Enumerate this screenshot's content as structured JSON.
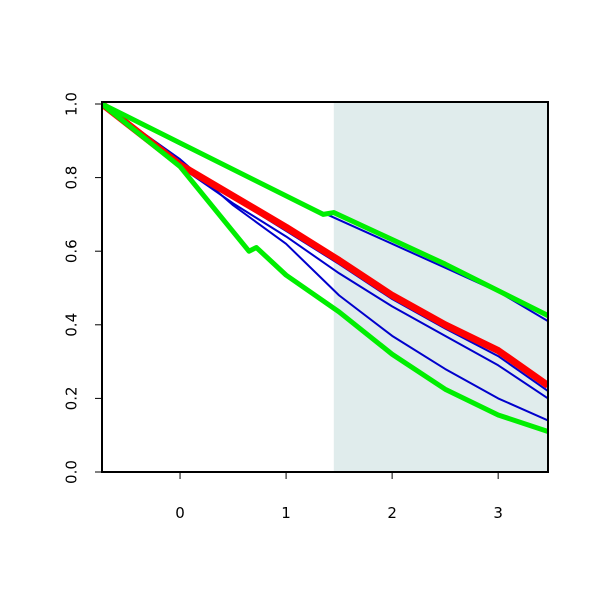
{
  "chart_data": {
    "type": "line",
    "xlim": [
      -0.736,
      3.47
    ],
    "ylim": [
      0,
      1.0
    ],
    "xticks": [
      0,
      1,
      2,
      3
    ],
    "yticks": [
      {
        "value": 0,
        "label": "0.0"
      },
      {
        "value": 0.2,
        "label": "0.2"
      },
      {
        "value": 0.4,
        "label": "0.4"
      },
      {
        "value": 0.6,
        "label": "0.6"
      },
      {
        "value": 0.8,
        "label": "0.8"
      },
      {
        "value": 1.0,
        "label": "1.0"
      }
    ],
    "shaded_region": {
      "x": [
        1.45,
        3.47
      ],
      "color": "#e0ecec"
    },
    "series": [
      {
        "color": "#0000cc",
        "width": 2,
        "x": [
          -0.736,
          0,
          0.5,
          1,
          1.5,
          2,
          2.5,
          3,
          3.47
        ],
        "values": [
          1.0,
          0.89,
          0.82,
          0.75,
          0.685,
          0.62,
          0.555,
          0.49,
          0.41
        ]
      },
      {
        "color": "#0000cc",
        "width": 2,
        "x": [
          -0.736,
          0,
          0.5,
          1,
          1.5,
          2,
          2.5,
          3,
          3.47
        ],
        "values": [
          1.0,
          0.835,
          0.745,
          0.655,
          0.565,
          0.47,
          0.39,
          0.315,
          0.22
        ]
      },
      {
        "color": "#0000cc",
        "width": 2,
        "x": [
          -0.736,
          0,
          0.5,
          1,
          1.5,
          2,
          2.5,
          3,
          3.47
        ],
        "values": [
          1.0,
          0.83,
          0.73,
          0.64,
          0.54,
          0.45,
          0.37,
          0.29,
          0.2
        ]
      },
      {
        "color": "#0000cc",
        "width": 2,
        "x": [
          -0.736,
          0,
          0.5,
          1,
          1.5,
          2,
          2.5,
          3,
          3.47
        ],
        "values": [
          1.0,
          0.85,
          0.725,
          0.62,
          0.48,
          0.37,
          0.28,
          0.2,
          0.14
        ]
      },
      {
        "color": "#ff0000",
        "width": 7,
        "x": [
          -0.736,
          0,
          0.5,
          1,
          1.5,
          2,
          2.5,
          3,
          3.47
        ],
        "values": [
          1.0,
          0.835,
          0.75,
          0.665,
          0.575,
          0.48,
          0.4,
          0.33,
          0.235
        ]
      },
      {
        "color": "#00ee00",
        "width": 5,
        "x": [
          -0.736,
          1.35,
          1.45,
          2.5,
          3.47
        ],
        "values": [
          1.0,
          0.7,
          0.705,
          0.565,
          0.425
        ]
      },
      {
        "color": "#00ee00",
        "width": 5,
        "x": [
          -0.736,
          0,
          0.65,
          0.72,
          1,
          1.5,
          2,
          2.5,
          3,
          3.47
        ],
        "values": [
          1.0,
          0.83,
          0.6,
          0.61,
          0.535,
          0.435,
          0.32,
          0.225,
          0.155,
          0.11
        ]
      }
    ]
  }
}
